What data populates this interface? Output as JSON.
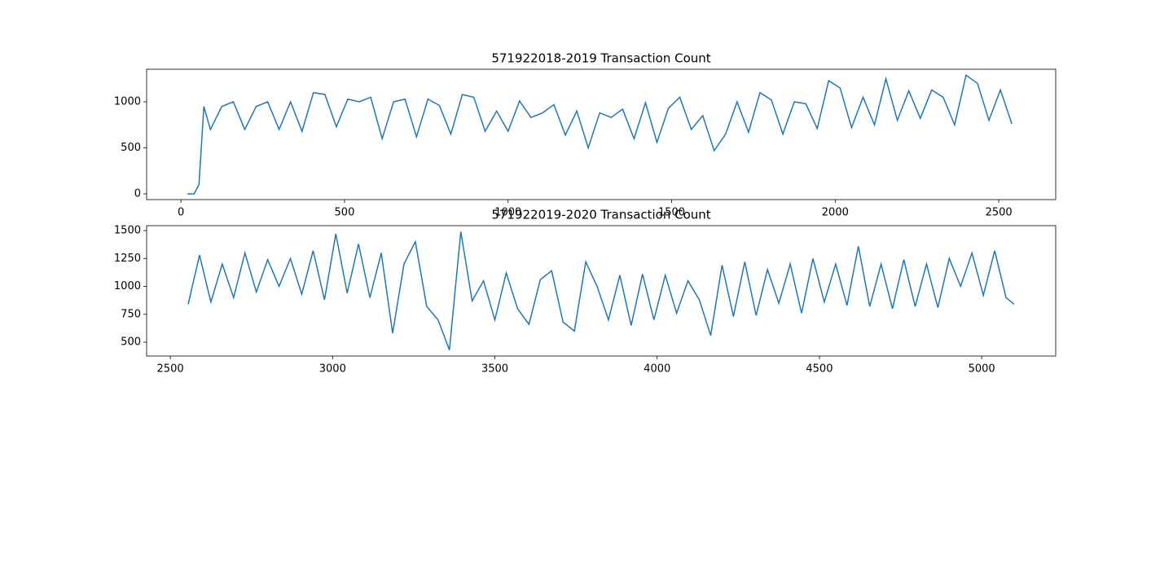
{
  "chart_data": [
    {
      "type": "line",
      "title": "571922018-2019 Transaction Count",
      "x": [
        20,
        40,
        55,
        70,
        90,
        125,
        160,
        195,
        230,
        265,
        300,
        335,
        370,
        405,
        440,
        475,
        510,
        545,
        580,
        615,
        650,
        685,
        720,
        755,
        790,
        825,
        860,
        895,
        930,
        965,
        1000,
        1035,
        1070,
        1105,
        1140,
        1175,
        1210,
        1245,
        1280,
        1315,
        1350,
        1385,
        1420,
        1455,
        1490,
        1525,
        1560,
        1595,
        1630,
        1665,
        1700,
        1735,
        1770,
        1805,
        1840,
        1875,
        1910,
        1945,
        1980,
        2015,
        2050,
        2085,
        2120,
        2155,
        2190,
        2225,
        2260,
        2295,
        2330,
        2365,
        2400,
        2435,
        2470,
        2505,
        2540
      ],
      "values": [
        0,
        0,
        100,
        950,
        700,
        950,
        1000,
        700,
        950,
        1000,
        700,
        1000,
        680,
        1100,
        1080,
        730,
        1030,
        1000,
        1050,
        600,
        1000,
        1030,
        620,
        1030,
        960,
        650,
        1080,
        1050,
        680,
        900,
        680,
        1010,
        830,
        880,
        970,
        640,
        900,
        500,
        880,
        830,
        920,
        600,
        990,
        560,
        930,
        1050,
        700,
        850,
        470,
        650,
        1000,
        670,
        1100,
        1020,
        650,
        1000,
        980,
        710,
        1230,
        1150,
        720,
        1050,
        750,
        1250,
        800,
        1120,
        820,
        1130,
        1050,
        750,
        1290,
        1200,
        800,
        1130,
        760
      ],
      "color": "#1f77b4",
      "xlim": [
        -105,
        2674
      ],
      "xticks": [
        0,
        500,
        1000,
        1500,
        2000,
        2500
      ],
      "ylim": [
        -62,
        1354
      ],
      "yticks": [
        0,
        500,
        1000
      ]
    },
    {
      "type": "line",
      "title": "571922019-2020 Transaction Count",
      "x": [
        2555,
        2590,
        2625,
        2660,
        2695,
        2730,
        2765,
        2800,
        2835,
        2870,
        2905,
        2940,
        2975,
        3010,
        3045,
        3080,
        3115,
        3150,
        3185,
        3220,
        3255,
        3290,
        3325,
        3360,
        3395,
        3430,
        3465,
        3500,
        3535,
        3570,
        3605,
        3640,
        3675,
        3710,
        3745,
        3780,
        3815,
        3850,
        3885,
        3920,
        3955,
        3990,
        4025,
        4060,
        4095,
        4130,
        4165,
        4200,
        4235,
        4270,
        4305,
        4340,
        4375,
        4410,
        4445,
        4480,
        4515,
        4550,
        4585,
        4620,
        4655,
        4690,
        4725,
        4760,
        4795,
        4830,
        4865,
        4900,
        4935,
        4970,
        5005,
        5040,
        5075,
        5100
      ],
      "values": [
        840,
        1280,
        860,
        1200,
        900,
        1300,
        950,
        1240,
        1000,
        1250,
        930,
        1320,
        880,
        1470,
        940,
        1380,
        900,
        1300,
        580,
        1200,
        1400,
        820,
        700,
        430,
        1490,
        870,
        1050,
        700,
        1120,
        800,
        660,
        1060,
        1140,
        680,
        600,
        1220,
        1000,
        700,
        1100,
        650,
        1110,
        700,
        1100,
        760,
        1050,
        880,
        560,
        1190,
        730,
        1220,
        740,
        1150,
        850,
        1200,
        760,
        1250,
        860,
        1200,
        830,
        1360,
        820,
        1200,
        800,
        1240,
        820,
        1200,
        810,
        1250,
        1000,
        1300,
        920,
        1320,
        900,
        840
      ],
      "color": "#1f77b4",
      "xlim": [
        2427,
        5228
      ],
      "xticks": [
        2500,
        3000,
        3500,
        4000,
        4500,
        5000
      ],
      "ylim": [
        376,
        1544
      ],
      "yticks": [
        500,
        750,
        1000,
        1250,
        1500
      ]
    }
  ]
}
